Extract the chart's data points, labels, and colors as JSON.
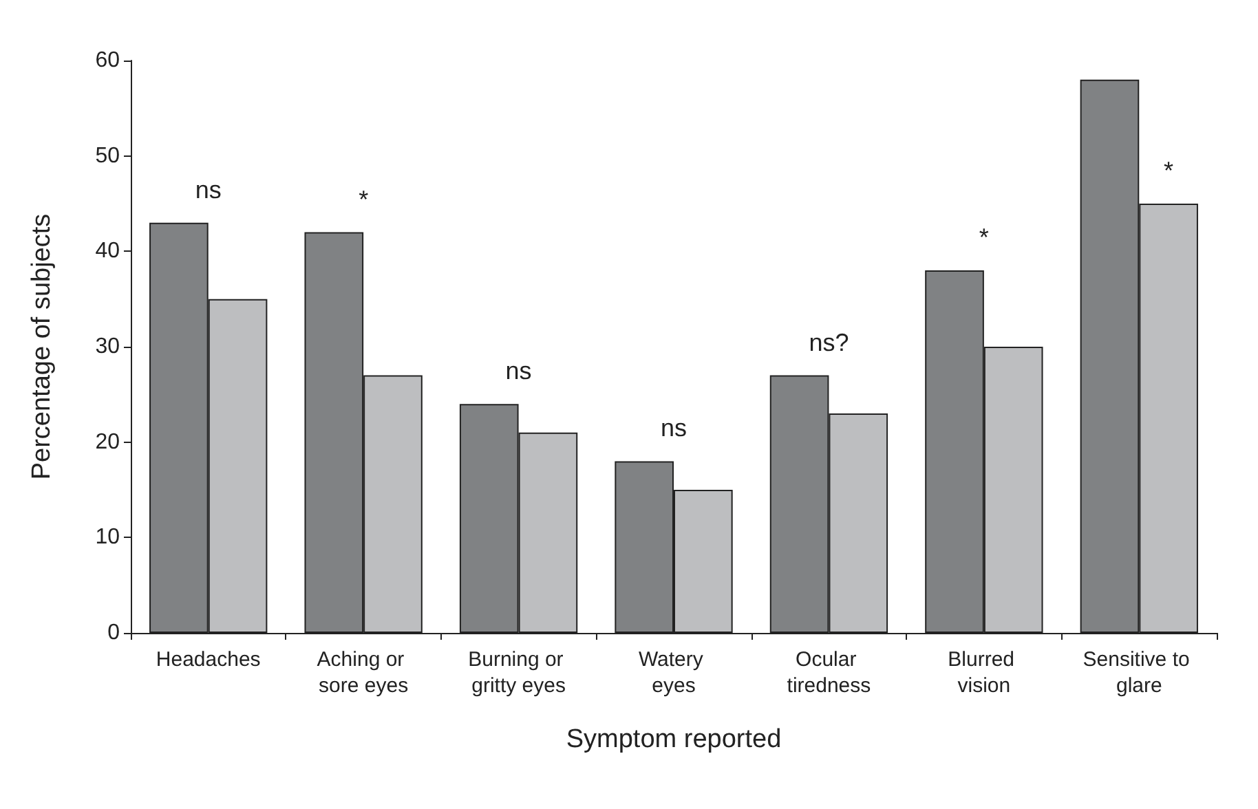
{
  "chart_data": {
    "type": "bar",
    "xlabel": "Symptom reported",
    "ylabel": "Percentage of subjects",
    "categories": [
      "Headaches",
      "Aching or sore eyes",
      "Burning or gritty eyes",
      "Watery eyes",
      "Ocular tiredness",
      "Blurred vision",
      "Sensitive to glare"
    ],
    "series": [
      {
        "color": "#808284",
        "values": [
          43,
          42,
          24,
          18,
          27,
          38,
          58
        ]
      },
      {
        "color": "#bdbec0",
        "values": [
          35,
          27,
          21,
          15,
          23,
          30,
          45
        ]
      }
    ],
    "ylim": [
      0,
      60
    ],
    "yticks": [
      0,
      10,
      20,
      30,
      40,
      50,
      60
    ],
    "grid": false,
    "annotations": [
      "ns",
      "*",
      "ns",
      "ns",
      "ns?",
      "*",
      "*"
    ]
  }
}
